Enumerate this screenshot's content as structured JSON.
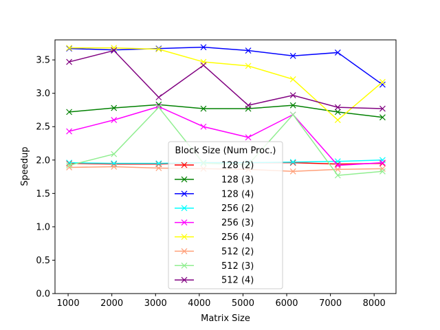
{
  "chart_data": {
    "type": "line",
    "xlabel": "Matrix Size",
    "ylabel": "Speedup",
    "xlim": [
      700,
      8500
    ],
    "ylim": [
      0.0,
      3.8
    ],
    "xticks": [
      1000,
      2000,
      3000,
      4000,
      5000,
      6000,
      7000,
      8000
    ],
    "yticks": [
      0.0,
      0.5,
      1.0,
      1.5,
      2.0,
      2.5,
      3.0,
      3.5
    ],
    "ytick_labels": [
      "0.0",
      "0.5",
      "1.0",
      "1.5",
      "2.0",
      "2.5",
      "3.0",
      "3.5"
    ],
    "x": [
      1024,
      2048,
      3072,
      4096,
      5120,
      6144,
      7168,
      8192
    ],
    "marker": "x",
    "legend": {
      "title": "Block Size (Num Proc.)",
      "position": "lower-center"
    },
    "series": [
      {
        "name": "128 (2)",
        "color": "#ff0000",
        "values": [
          1.95,
          1.94,
          1.94,
          1.96,
          1.96,
          1.96,
          1.94,
          1.95
        ]
      },
      {
        "name": "128 (3)",
        "color": "#008000",
        "values": [
          2.72,
          2.78,
          2.83,
          2.77,
          2.77,
          2.82,
          2.72,
          2.64
        ]
      },
      {
        "name": "128 (4)",
        "color": "#0000ff",
        "values": [
          3.67,
          3.65,
          3.67,
          3.69,
          3.64,
          3.56,
          3.61,
          3.13
        ]
      },
      {
        "name": "256 (2)",
        "color": "#00ffff",
        "values": [
          1.96,
          1.95,
          1.95,
          1.96,
          1.96,
          1.97,
          1.98,
          2.0
        ]
      },
      {
        "name": "256 (3)",
        "color": "#ff00ff",
        "values": [
          2.43,
          2.6,
          2.8,
          2.5,
          2.34,
          2.68,
          1.92,
          1.96
        ]
      },
      {
        "name": "256 (4)",
        "color": "#ffff00",
        "values": [
          3.68,
          3.68,
          3.66,
          3.47,
          3.41,
          3.21,
          2.6,
          3.17
        ]
      },
      {
        "name": "512 (2)",
        "color": "#ffa07a",
        "values": [
          1.89,
          1.9,
          1.88,
          1.87,
          1.86,
          1.83,
          1.86,
          1.87
        ]
      },
      {
        "name": "512 (3)",
        "color": "#90ee90",
        "values": [
          1.92,
          2.09,
          2.79,
          1.95,
          1.93,
          2.68,
          1.77,
          1.83
        ]
      },
      {
        "name": "512 (4)",
        "color": "#800080",
        "values": [
          3.47,
          3.64,
          2.94,
          3.42,
          2.82,
          2.97,
          2.79,
          2.77
        ]
      }
    ]
  }
}
